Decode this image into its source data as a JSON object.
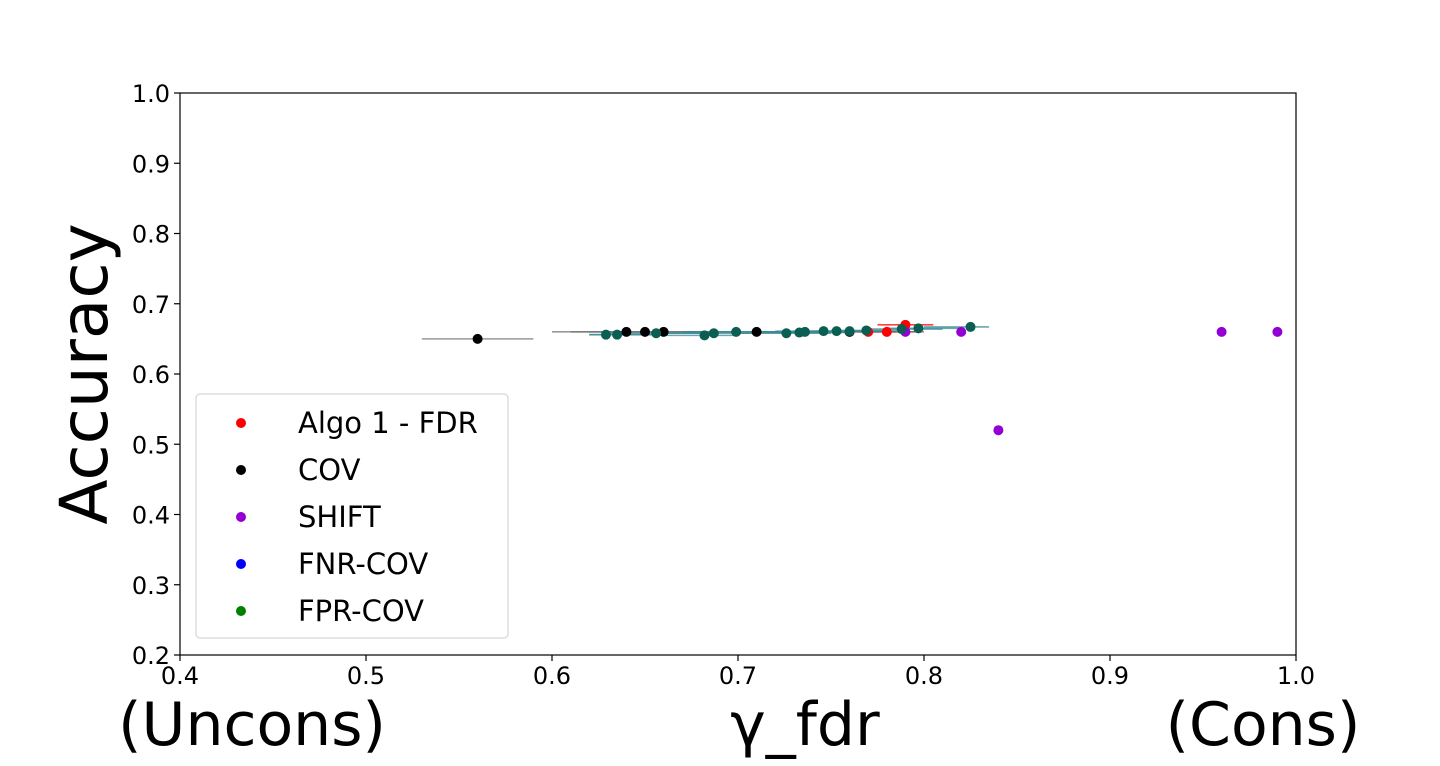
{
  "chart_data": {
    "type": "scatter",
    "xlabel": "γ_fdr",
    "ylabel": "Accuracy",
    "x_left_annotation": "(Uncons)",
    "x_right_annotation": "(Cons)",
    "xlim": [
      0.4,
      1.0
    ],
    "ylim": [
      0.2,
      1.0
    ],
    "xticks": [
      "0.4",
      "0.5",
      "0.6",
      "0.7",
      "0.8",
      "0.9",
      "1.0"
    ],
    "yticks": [
      "0.2",
      "0.3",
      "0.4",
      "0.5",
      "0.6",
      "0.7",
      "0.8",
      "0.9",
      "1.0"
    ],
    "grid": false,
    "legend_position": "lower-left",
    "series": [
      {
        "name": "Algo 1 - FDR",
        "color": "#ff0000",
        "points": [
          {
            "x": 0.77,
            "y": 0.66,
            "xerr": [
              0.755,
              0.785
            ]
          },
          {
            "x": 0.78,
            "y": 0.66,
            "xerr": [
              0.765,
              0.795
            ]
          },
          {
            "x": 0.79,
            "y": 0.67,
            "xerr": [
              0.775,
              0.805
            ]
          }
        ]
      },
      {
        "name": "COV",
        "color": "#000000",
        "points": [
          {
            "x": 0.56,
            "y": 0.65,
            "xerr": [
              0.53,
              0.59
            ]
          },
          {
            "x": 0.64,
            "y": 0.66,
            "xerr": [
              0.6,
              0.68
            ]
          },
          {
            "x": 0.65,
            "y": 0.66,
            "xerr": [
              0.61,
              0.69
            ]
          },
          {
            "x": 0.66,
            "y": 0.66,
            "xerr": [
              0.62,
              0.7
            ]
          },
          {
            "x": 0.71,
            "y": 0.66,
            "xerr": [
              0.67,
              0.75
            ]
          },
          {
            "x": 0.76,
            "y": 0.66,
            "xerr": [
              0.72,
              0.8
            ]
          }
        ]
      },
      {
        "name": "SHIFT",
        "color": "#9400d3",
        "points": [
          {
            "x": 0.79,
            "y": 0.66
          },
          {
            "x": 0.82,
            "y": 0.66
          },
          {
            "x": 0.84,
            "y": 0.52
          },
          {
            "x": 0.96,
            "y": 0.66
          },
          {
            "x": 0.99,
            "y": 0.66
          }
        ]
      },
      {
        "name": "FNR-COV",
        "color": "#0000ff",
        "points": []
      },
      {
        "name": "FPR-COV",
        "color": "#008000",
        "render_color": "#0b5e52",
        "errcolor": "#3a8a96",
        "points": [
          {
            "x": 0.629,
            "y": 0.656,
            "xerr": [
              0.62,
              0.66
            ]
          },
          {
            "x": 0.635,
            "y": 0.656,
            "xerr": [
              0.62,
              0.66
            ]
          },
          {
            "x": 0.656,
            "y": 0.658,
            "xerr": [
              0.63,
              0.68
            ]
          },
          {
            "x": 0.682,
            "y": 0.655,
            "xerr": [
              0.66,
              0.7
            ]
          },
          {
            "x": 0.687,
            "y": 0.658,
            "xerr": [
              0.66,
              0.71
            ]
          },
          {
            "x": 0.699,
            "y": 0.66,
            "xerr": [
              0.67,
              0.73
            ]
          },
          {
            "x": 0.726,
            "y": 0.658,
            "xerr": [
              0.7,
              0.75
            ]
          },
          {
            "x": 0.733,
            "y": 0.659,
            "xerr": [
              0.71,
              0.76
            ]
          },
          {
            "x": 0.736,
            "y": 0.66,
            "xerr": [
              0.71,
              0.76
            ]
          },
          {
            "x": 0.746,
            "y": 0.661,
            "xerr": [
              0.72,
              0.77
            ]
          },
          {
            "x": 0.753,
            "y": 0.661,
            "xerr": [
              0.73,
              0.78
            ]
          },
          {
            "x": 0.76,
            "y": 0.661,
            "xerr": [
              0.74,
              0.78
            ]
          },
          {
            "x": 0.769,
            "y": 0.662,
            "xerr": [
              0.75,
              0.79
            ]
          },
          {
            "x": 0.788,
            "y": 0.664,
            "xerr": [
              0.77,
              0.81
            ]
          },
          {
            "x": 0.797,
            "y": 0.665,
            "xerr": [
              0.78,
              0.82
            ]
          },
          {
            "x": 0.825,
            "y": 0.667,
            "xerr": [
              0.8,
              0.835
            ]
          }
        ]
      }
    ]
  }
}
